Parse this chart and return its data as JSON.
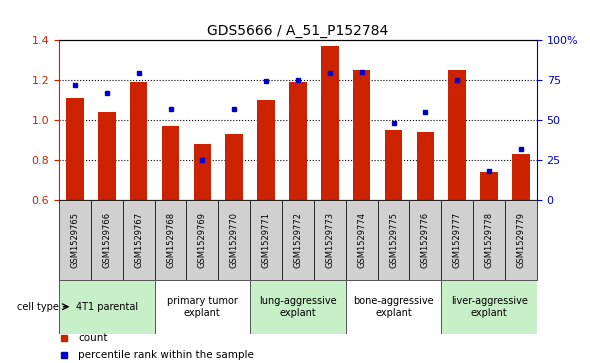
{
  "title": "GDS5666 / A_51_P152784",
  "samples": [
    "GSM1529765",
    "GSM1529766",
    "GSM1529767",
    "GSM1529768",
    "GSM1529769",
    "GSM1529770",
    "GSM1529771",
    "GSM1529772",
    "GSM1529773",
    "GSM1529774",
    "GSM1529775",
    "GSM1529776",
    "GSM1529777",
    "GSM1529778",
    "GSM1529779"
  ],
  "counts": [
    1.11,
    1.04,
    1.19,
    0.97,
    0.88,
    0.93,
    1.1,
    1.19,
    1.37,
    1.25,
    0.95,
    0.94,
    1.25,
    0.74,
    0.83
  ],
  "percentiles": [
    72,
    67,
    79,
    57,
    25,
    57,
    74,
    75,
    79,
    80,
    48,
    55,
    75,
    18,
    32
  ],
  "cell_types": [
    {
      "label": "4T1 parental",
      "start": 0,
      "end": 3,
      "color": "#c8f0c8"
    },
    {
      "label": "primary tumor\nexplant",
      "start": 3,
      "end": 6,
      "color": "#ffffff"
    },
    {
      "label": "lung-aggressive\nexplant",
      "start": 6,
      "end": 9,
      "color": "#c8f0c8"
    },
    {
      "label": "bone-aggressive\nexplant",
      "start": 9,
      "end": 12,
      "color": "#ffffff"
    },
    {
      "label": "liver-aggressive\nexplant",
      "start": 12,
      "end": 15,
      "color": "#c8f0c8"
    }
  ],
  "ylim_left": [
    0.6,
    1.4
  ],
  "ylim_right": [
    0,
    100
  ],
  "yticks_left": [
    0.6,
    0.8,
    1.0,
    1.2,
    1.4
  ],
  "yticks_right": [
    0,
    25,
    50,
    75,
    100
  ],
  "bar_color": "#cc2200",
  "marker_color": "#0000cc",
  "bg_color": "#ffffff",
  "sample_bg_color": "#d0d0d0",
  "title_fontsize": 10,
  "tick_fontsize": 8,
  "sample_fontsize": 6,
  "cell_fontsize": 7,
  "legend_fontsize": 7.5
}
